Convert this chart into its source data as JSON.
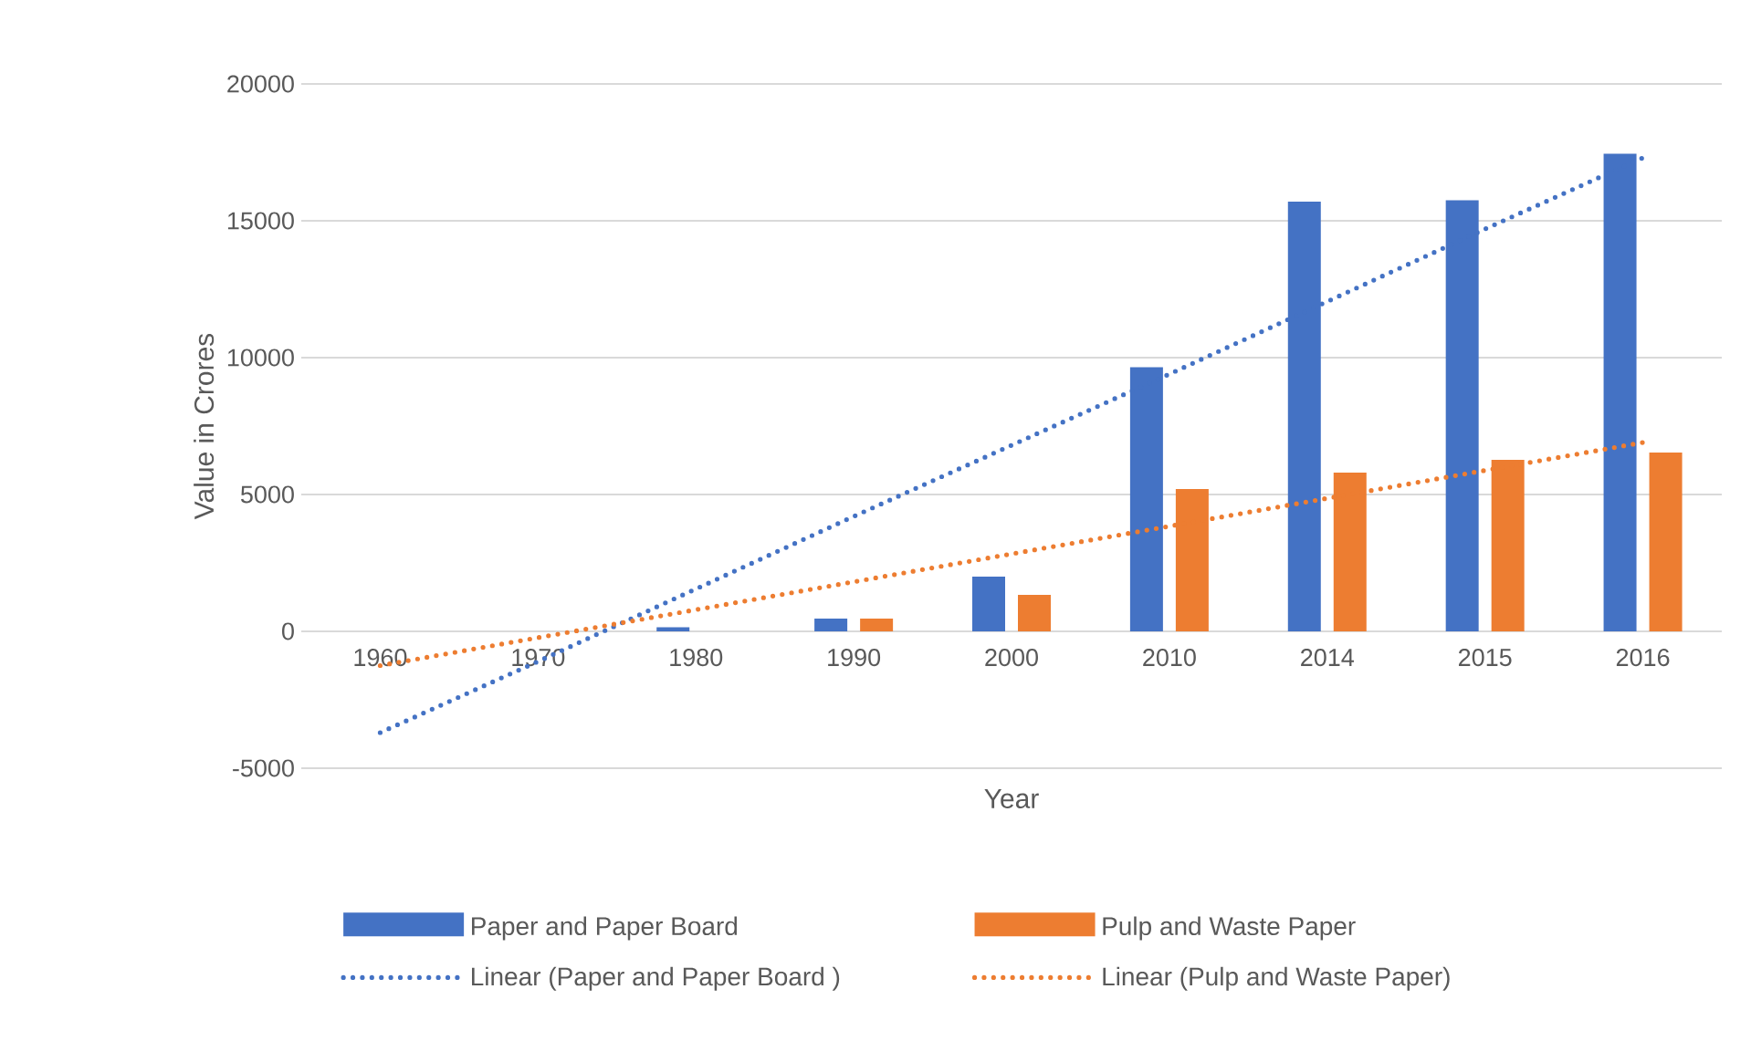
{
  "chart_data": {
    "type": "bar",
    "xlabel": "Year",
    "ylabel": "Value in Crores",
    "categories": [
      "1960",
      "1970",
      "1980",
      "1990",
      "2000",
      "2010",
      "2014",
      "2015",
      "2016"
    ],
    "series": [
      {
        "name": "Paper and Paper Board",
        "color": "#4472c4",
        "values": [
          0,
          0,
          150,
          470,
          2000,
          9650,
          15700,
          15750,
          17450
        ]
      },
      {
        "name": "Pulp and Waste Paper",
        "color": "#ed7d31",
        "values": [
          0,
          0,
          0,
          470,
          1330,
          5200,
          5800,
          6270,
          6530
        ]
      },
      {
        "name": "Linear (Paper and Paper Board )",
        "type": "line",
        "line_style": "dotted",
        "color": "#4472c4",
        "values": [
          -3700,
          -1100,
          1550,
          4200,
          6800,
          9400,
          12050,
          14700,
          17300
        ]
      },
      {
        "name": "Linear (Pulp and Waste Paper)",
        "type": "line",
        "line_style": "dotted",
        "color": "#ed7d31",
        "values": [
          -1250,
          -230,
          790,
          1810,
          2830,
          3840,
          4860,
          5880,
          6900
        ]
      }
    ],
    "ylim": [
      -5000,
      20000
    ],
    "yticks": [
      -5000,
      0,
      5000,
      10000,
      15000,
      20000
    ],
    "grid": "y",
    "legend": "bottom"
  }
}
